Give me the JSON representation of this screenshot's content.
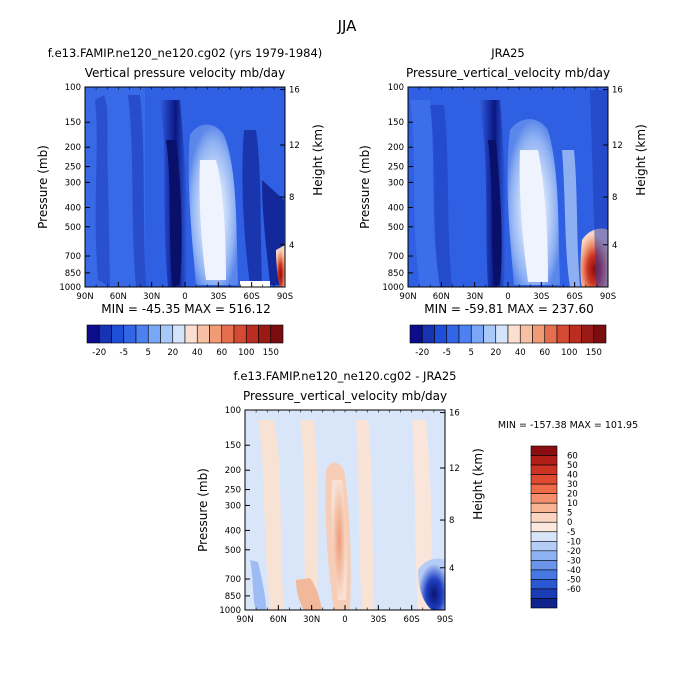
{
  "figure_title": "JJA",
  "chart_data": [
    {
      "type": "heatmap",
      "panel_title": "f.e13.FAMIP.ne120_ne120.cg02 (yrs 1979-1984)",
      "subtitle": "Vertical pressure velocity mb/day",
      "xlabel": "",
      "ylabel": "Pressure (mb)",
      "ylabel_right": "Height (km)",
      "x_ticks": [
        "90N",
        "60N",
        "30N",
        "0",
        "30S",
        "60S",
        "90S"
      ],
      "y_ticks": [
        "100",
        "150",
        "200",
        "250",
        "300",
        "400",
        "500",
        "700",
        "850",
        "1000"
      ],
      "y_ticks_right": [
        "16",
        "12",
        "8",
        "4"
      ],
      "y_scale": "log",
      "ylim": [
        1000,
        100
      ],
      "stats": "MIN = -45.35   MAX = 516.12",
      "min": -45.35,
      "max": 516.12
    },
    {
      "type": "heatmap",
      "panel_title": "JRA25",
      "subtitle": "Pressure_vertical_velocity mb/day",
      "xlabel": "",
      "ylabel": "Pressure (mb)",
      "ylabel_right": "Height (km)",
      "x_ticks": [
        "90N",
        "60N",
        "30N",
        "0",
        "30S",
        "60S",
        "90S"
      ],
      "y_ticks": [
        "100",
        "150",
        "200",
        "250",
        "300",
        "400",
        "500",
        "700",
        "850",
        "1000"
      ],
      "y_ticks_right": [
        "16",
        "12",
        "8",
        "4"
      ],
      "y_scale": "log",
      "ylim": [
        1000,
        100
      ],
      "stats": "MIN = -59.81   MAX = 237.60",
      "min": -59.81,
      "max": 237.6
    },
    {
      "type": "heatmap",
      "panel_title": "f.e13.FAMIP.ne120_ne120.cg02 - JRA25",
      "subtitle": "Pressure_vertical_velocity mb/day",
      "xlabel": "",
      "ylabel": "Pressure (mb)",
      "ylabel_right": "Height (km)",
      "x_ticks": [
        "90N",
        "60N",
        "30N",
        "0",
        "30S",
        "60S",
        "90S"
      ],
      "y_ticks": [
        "100",
        "150",
        "200",
        "250",
        "300",
        "400",
        "500",
        "700",
        "850",
        "1000"
      ],
      "y_ticks_right": [
        "16",
        "12",
        "8",
        "4"
      ],
      "y_scale": "log",
      "ylim": [
        1000,
        100
      ],
      "stats": "MIN = -157.38   MAX = 101.95",
      "min": -157.38,
      "max": 101.95
    }
  ],
  "colorbar_top": {
    "labels": [
      "-20",
      "-5",
      "5",
      "20",
      "40",
      "60",
      "100",
      "150"
    ],
    "colors": [
      "#0d0d8c",
      "#1733b3",
      "#1f4fd8",
      "#3366e6",
      "#4d80f0",
      "#7aa6f7",
      "#a8c8fa",
      "#d4e4fb",
      "#fbe0d2",
      "#f7bfa3",
      "#f09a76",
      "#e46e4d",
      "#d44a32",
      "#bb2d20",
      "#9a1a16",
      "#7a0d10"
    ]
  },
  "colorbar_diff": {
    "labels": [
      "60",
      "50",
      "40",
      "30",
      "20",
      "10",
      "5",
      "0",
      "-5",
      "-10",
      "-20",
      "-30",
      "-40",
      "-50",
      "-60"
    ],
    "colors": [
      "#8a0d10",
      "#b01e18",
      "#cc3322",
      "#e04a30",
      "#ee6a48",
      "#f58f6c",
      "#f9b494",
      "#fbd5c2",
      "#fbe9df",
      "#d8e5f8",
      "#b5cdf6",
      "#8fb2f2",
      "#6a95eb",
      "#4677e2",
      "#2a58d2",
      "#1a3cb5",
      "#0f238f"
    ]
  },
  "colors": {
    "base_blue": "#2d5fe4",
    "mid_blue": "#3b6fe8",
    "deep_blue": "#0c1a8a",
    "light_blue": "#b9d1f7",
    "pale": "#e6eefc",
    "diff_bg": "#d9e6fa",
    "diff_pos": "#f4c7ad",
    "diff_strong_pos": "#ee9a7a",
    "diff_neg": "#2345c9"
  }
}
